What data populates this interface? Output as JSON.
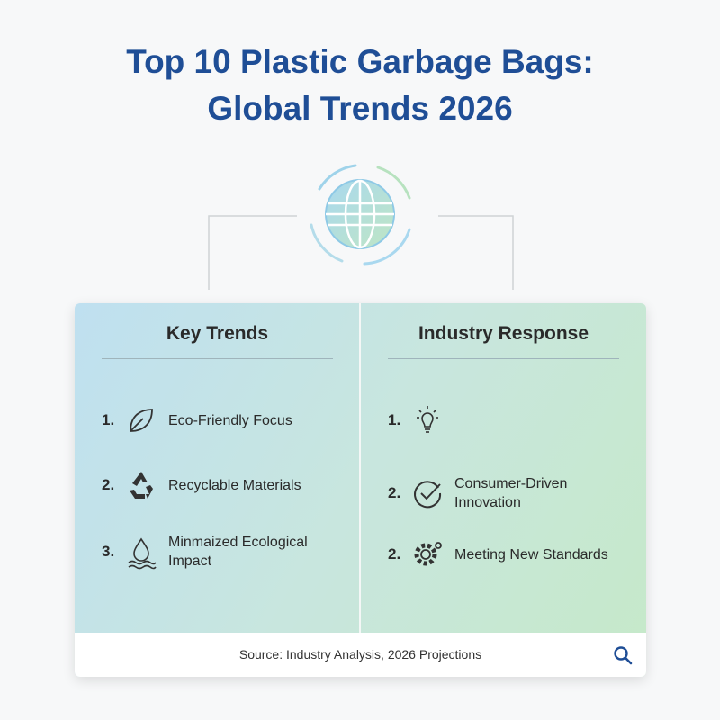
{
  "header": {
    "title_lines": [
      "Top 10 Plastic Garbage Bags:",
      "Global Trends 2026"
    ]
  },
  "columns": [
    {
      "heading": "Key Trends",
      "items": [
        {
          "number": "1.",
          "lines": [
            "Eco-Friendly Focus"
          ]
        },
        {
          "number": "2.",
          "lines": [
            "Recyclable Materials"
          ]
        },
        {
          "number": "3.",
          "lines": [
            "Minmaized Ecological",
            "Impact"
          ]
        }
      ]
    },
    {
      "heading": "Industry Response",
      "items": [
        {
          "number": "1.",
          "lines": []
        },
        {
          "number": "2.",
          "lines": [
            "Consumer-Driven",
            "Innovation"
          ]
        },
        {
          "number": "2.",
          "lines": [
            "Meeting New Standards"
          ]
        }
      ]
    }
  ],
  "footer": {
    "source": "Source: Industry Analysis, 2026 Projections"
  }
}
